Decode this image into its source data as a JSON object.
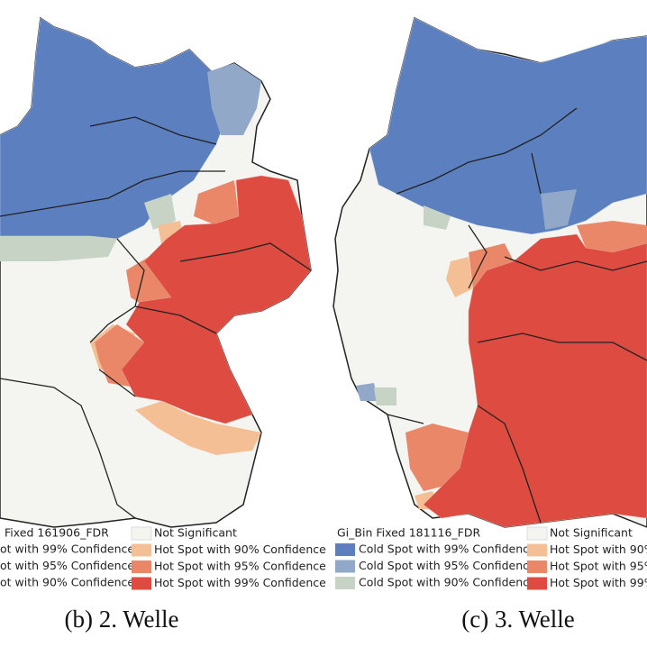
{
  "panels": [
    {
      "caption": "(b) 2. Welle",
      "legend": {
        "title": "Fixed 161906_FDR",
        "left_items": [
          "ot with 99% Confidence",
          "ot with 95% Confidence",
          "ot with 90% Confidence"
        ],
        "right_items": [
          "Not Significant",
          "Hot Spot with 90% Confidence",
          "Hot Spot with 95% Confidence",
          "Hot Spot with 99% Confidence"
        ]
      }
    },
    {
      "caption": "(c) 3. Welle",
      "legend": {
        "title": "Gi_Bin Fixed 181116_FDR",
        "left_items": [
          "Cold Spot with 99% Confidence",
          "Cold Spot with 95% Confidence",
          "Cold Spot with 90% Confidence"
        ],
        "right_items": [
          "Not Significant",
          "Hot Spot with 90%",
          "Hot Spot with 95%",
          "Hot Spot with 99%"
        ]
      }
    }
  ]
}
